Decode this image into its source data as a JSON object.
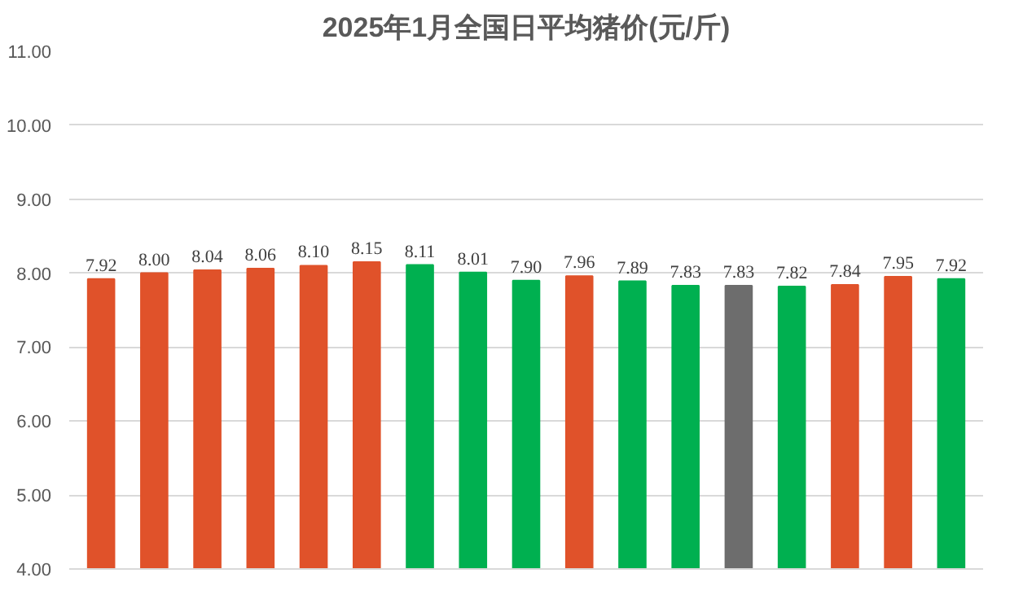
{
  "chart_data": {
    "type": "bar",
    "title": "2025年1月全国日平均猪价(元/斤)",
    "categories": [
      null,
      null,
      null,
      null,
      null,
      null,
      null,
      null,
      null,
      null,
      null,
      null,
      null,
      null,
      null,
      null,
      null
    ],
    "values": [
      7.92,
      8.0,
      8.04,
      8.06,
      8.1,
      8.15,
      8.11,
      8.01,
      7.9,
      7.96,
      7.89,
      7.83,
      7.83,
      7.82,
      7.84,
      7.95,
      7.92
    ],
    "value_labels": [
      "7.92",
      "8.00",
      "8.04",
      "8.06",
      "8.10",
      "8.15",
      "8.11",
      "8.01",
      "7.90",
      "7.96",
      "7.89",
      "7.83",
      "7.83",
      "7.82",
      "7.84",
      "7.95",
      "7.92"
    ],
    "colors": [
      "#e0522a",
      "#e0522a",
      "#e0522a",
      "#e0522a",
      "#e0522a",
      "#e0522a",
      "#00b050",
      "#00b050",
      "#00b050",
      "#e0522a",
      "#00b050",
      "#00b050",
      "#6d6d6d",
      "#00b050",
      "#e0522a",
      "#e0522a",
      "#00b050"
    ],
    "ylim": [
      4,
      11
    ],
    "yticks": [
      {
        "value": 4,
        "label": "4.00"
      },
      {
        "value": 5,
        "label": "5.00"
      },
      {
        "value": 6,
        "label": "6.00"
      },
      {
        "value": 7,
        "label": "7.00"
      },
      {
        "value": 8,
        "label": "8.00"
      },
      {
        "value": 9,
        "label": "9.00"
      },
      {
        "value": 10,
        "label": "10.00"
      },
      {
        "value": 11,
        "label": "11.00"
      }
    ],
    "grid": "y"
  }
}
